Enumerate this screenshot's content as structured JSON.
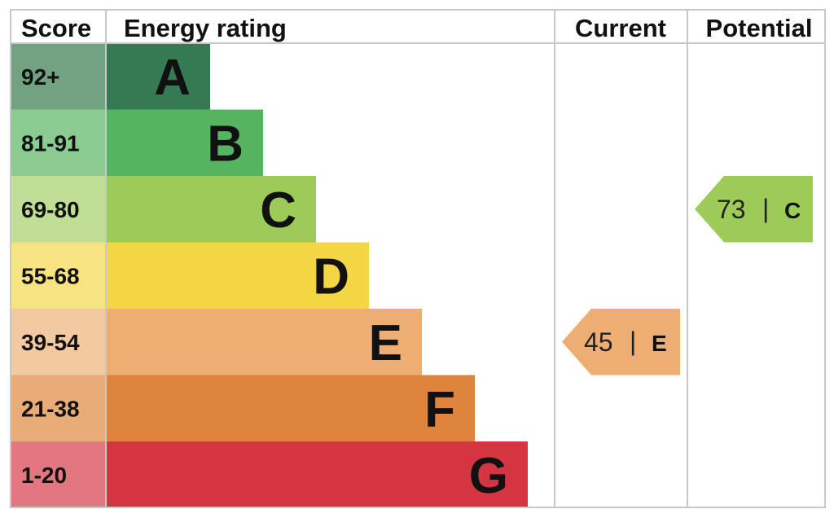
{
  "chart_data": {
    "type": "bar",
    "headers": {
      "score": "Score",
      "rating": "Energy rating",
      "current": "Current",
      "potential": "Potential"
    },
    "bands": [
      {
        "range": "92+",
        "letter": "A",
        "min": 92,
        "max": 100,
        "color": "#357a52",
        "score_color": "#72a282"
      },
      {
        "range": "81-91",
        "letter": "B",
        "min": 81,
        "max": 91,
        "color": "#56b461",
        "score_color": "#8bca91"
      },
      {
        "range": "69-80",
        "letter": "C",
        "min": 69,
        "max": 80,
        "color": "#9dcb58",
        "score_color": "#c1df94"
      },
      {
        "range": "55-68",
        "letter": "D",
        "min": 55,
        "max": 68,
        "color": "#f4d645",
        "score_color": "#f8e382"
      },
      {
        "range": "39-54",
        "letter": "E",
        "min": 39,
        "max": 54,
        "color": "#edad73",
        "score_color": "#f3c9a1"
      },
      {
        "range": "21-38",
        "letter": "F",
        "min": 21,
        "max": 38,
        "color": "#df843c",
        "score_color": "#e9ab78"
      },
      {
        "range": "1-20",
        "letter": "G",
        "min": 1,
        "max": 20,
        "color": "#d43540",
        "score_color": "#e27681"
      }
    ],
    "current": {
      "value": 45,
      "separator": "|",
      "letter": "E",
      "color": "#edad73"
    },
    "potential": {
      "value": 73,
      "separator": "|",
      "letter": "C",
      "color": "#9dcb58"
    }
  }
}
